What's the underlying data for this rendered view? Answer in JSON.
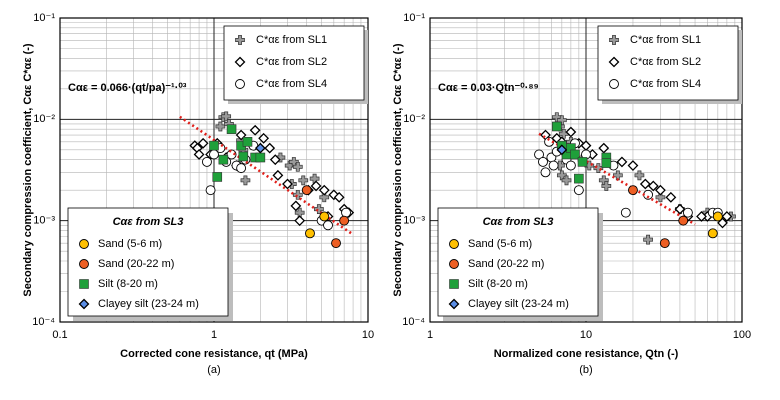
{
  "chart_data": [
    {
      "type": "scatter",
      "log_x": true,
      "log_y": true,
      "grid": true,
      "annotation": "Cαε = 0.066·(qt/pa)⁻¹·⁰³",
      "x_label": "Corrected cone resistance, qt (MPa)",
      "y_label": "Secondary compression coefficient, Cαε C*αε (-)",
      "caption": "(a)",
      "xlim": [
        0.1,
        10
      ],
      "xticks": [
        0.1,
        1,
        10
      ],
      "ylim": [
        0.0001,
        0.1
      ],
      "yticks": [
        {
          "value": 0.0001,
          "label": "10⁻⁴"
        },
        {
          "value": 0.001,
          "label": "10⁻³"
        },
        {
          "value": 0.01,
          "label": "10⁻²"
        },
        {
          "value": 0.1,
          "label": "10⁻¹"
        }
      ],
      "trend": {
        "color": "#e0201b",
        "x": [
          0.6,
          8
        ],
        "values": [
          0.0106,
          0.00073
        ]
      },
      "series": [
        {
          "name": "C*αε from SL1",
          "marker": "plus",
          "color": "#9a9a9a",
          "x": [
            1.15,
            1.2,
            1.1,
            1.25,
            1.5,
            1.55,
            1.6,
            1.45,
            2.7,
            3.1,
            3.3,
            3.5,
            3.2,
            3.8,
            3.5,
            4.5,
            5.2,
            4.8,
            3.6
          ],
          "values": [
            0.0105,
            0.0107,
            0.0085,
            0.009,
            0.0062,
            0.005,
            0.0025,
            0.0035,
            0.0042,
            0.0035,
            0.0038,
            0.0034,
            0.0023,
            0.0025,
            0.0018,
            0.0026,
            0.0017,
            0.0013,
            0.0012
          ]
        },
        {
          "name": "C*αε from SL2",
          "marker": "diamond",
          "color": "#ffffff",
          "x": [
            0.75,
            0.78,
            0.8,
            0.85,
            0.95,
            1.05,
            1.2,
            1.4,
            1.5,
            1.85,
            2.1,
            2.3,
            2.5,
            2.6,
            3.0,
            3.4,
            3.6,
            4.1,
            4.6,
            5.2,
            6.0,
            6.5,
            7.0,
            7.5,
            5.5
          ],
          "values": [
            0.0055,
            0.0052,
            0.0045,
            0.0058,
            0.0045,
            0.0058,
            0.0042,
            0.0035,
            0.007,
            0.0078,
            0.0065,
            0.0052,
            0.004,
            0.0028,
            0.0023,
            0.0014,
            0.001,
            0.002,
            0.0022,
            0.002,
            0.0018,
            0.0017,
            0.0013,
            0.0012,
            0.0011
          ]
        },
        {
          "name": "C*αε from SL4",
          "marker": "circle",
          "color": "#ffffff",
          "x": [
            0.9,
            0.95,
            1.0,
            1.1,
            1.3,
            1.4,
            1.5,
            1.8,
            5.0,
            5.5,
            7.2,
            1.2,
            1.6
          ],
          "values": [
            0.0038,
            0.002,
            0.0045,
            0.0052,
            0.0045,
            0.0035,
            0.0033,
            0.0055,
            0.001,
            0.0009,
            0.0012,
            0.0038,
            0.004
          ]
        }
      ],
      "sl3_legend_title": "Cαε from SL3",
      "sl3_series": [
        {
          "name": "Sand (5-6 m)",
          "marker": "circle",
          "color": "#ffc000",
          "x": [
            4.2,
            5.2
          ],
          "values": [
            0.00075,
            0.0011
          ]
        },
        {
          "name": "Sand (20-22 m)",
          "marker": "circle",
          "color": "#ed5f24",
          "x": [
            4.0,
            6.2,
            7.0
          ],
          "values": [
            0.002,
            0.0006,
            0.001
          ]
        },
        {
          "name": "Silt (8-20 m)",
          "marker": "square",
          "color": "#1fa03a",
          "x": [
            1.0,
            1.05,
            1.15,
            1.3,
            1.5,
            1.55,
            1.85,
            2.0,
            1.65
          ],
          "values": [
            0.0055,
            0.0027,
            0.004,
            0.008,
            0.0055,
            0.0043,
            0.0042,
            0.0042,
            0.006
          ]
        },
        {
          "name": "Clayey silt (23-24 m)",
          "marker": "diamond",
          "color": "#5b8ee6",
          "x": [
            2.0
          ],
          "values": [
            0.0052
          ]
        }
      ]
    },
    {
      "type": "scatter",
      "log_x": true,
      "log_y": true,
      "grid": true,
      "annotation": "Cαε = 0.03·Qtn⁻⁰·⁸⁹",
      "x_label": "Normalized cone resistance, Qtn (-)",
      "y_label": "Secondary compression coefficient, Cαε C*αε (-)",
      "caption": "(b)",
      "xlim": [
        1,
        100
      ],
      "xticks": [
        1,
        10,
        100
      ],
      "ylim": [
        0.0001,
        0.1
      ],
      "yticks": [
        {
          "value": 0.0001,
          "label": "10⁻⁴"
        },
        {
          "value": 0.001,
          "label": "10⁻³"
        },
        {
          "value": 0.01,
          "label": "10⁻²"
        },
        {
          "value": 0.1,
          "label": "10⁻¹"
        }
      ],
      "trend": {
        "color": "#e0201b",
        "x": [
          5,
          50
        ],
        "values": [
          0.0072,
          0.00092
        ]
      },
      "series": [
        {
          "name": "C*αε from SL1",
          "marker": "plus",
          "color": "#9a9a9a",
          "x": [
            6.5,
            7,
            6.8,
            7.2,
            8,
            7.5,
            6.8,
            7,
            7.5,
            9.5,
            10.5,
            12,
            13,
            13.5,
            16,
            22,
            30,
            40,
            85,
            25,
            60
          ],
          "values": [
            0.0105,
            0.0098,
            0.0085,
            0.0072,
            0.006,
            0.0045,
            0.0035,
            0.0028,
            0.0025,
            0.004,
            0.0035,
            0.0033,
            0.0025,
            0.0022,
            0.0028,
            0.0028,
            0.0017,
            0.0013,
            0.0011,
            0.00065,
            0.0012
          ]
        },
        {
          "name": "C*αε from SL2",
          "marker": "diamond",
          "color": "#ffffff",
          "x": [
            5.5,
            6.5,
            7,
            8,
            9,
            10,
            11,
            13,
            17,
            20,
            24,
            27,
            30,
            35,
            40,
            45,
            60,
            75,
            80,
            55
          ],
          "values": [
            0.007,
            0.0065,
            0.006,
            0.0075,
            0.0058,
            0.0055,
            0.0045,
            0.0052,
            0.0038,
            0.0035,
            0.0023,
            0.0022,
            0.002,
            0.0017,
            0.0013,
            0.0011,
            0.0011,
            0.00095,
            0.0011,
            0.0011
          ]
        },
        {
          "name": "C*αε from SL4",
          "marker": "circle",
          "color": "#ffffff",
          "x": [
            5,
            5.3,
            5.5,
            6,
            6.2,
            6.5,
            7,
            7.5,
            8,
            8.5,
            9,
            10,
            15,
            18,
            25,
            45,
            65,
            70,
            5.8
          ],
          "values": [
            0.0045,
            0.0038,
            0.003,
            0.0042,
            0.0035,
            0.0048,
            0.0052,
            0.004,
            0.0035,
            0.0058,
            0.002,
            0.0045,
            0.0035,
            0.0012,
            0.0018,
            0.0012,
            0.0012,
            0.0012,
            0.006
          ]
        }
      ],
      "sl3_legend_title": "Cαε from SL3",
      "sl3_series": [
        {
          "name": "Sand (5-6 m)",
          "marker": "circle",
          "color": "#ffc000",
          "x": [
            65,
            70
          ],
          "values": [
            0.00075,
            0.0011
          ]
        },
        {
          "name": "Sand (20-22 m)",
          "marker": "circle",
          "color": "#ed5f24",
          "x": [
            20,
            32,
            42
          ],
          "values": [
            0.002,
            0.0006,
            0.001
          ]
        },
        {
          "name": "Silt (8-20 m)",
          "marker": "square",
          "color": "#1fa03a",
          "x": [
            6.5,
            7,
            7.5,
            8,
            8.5,
            9,
            9.5,
            13.5,
            13.5
          ],
          "values": [
            0.0085,
            0.0055,
            0.0045,
            0.0052,
            0.0045,
            0.0026,
            0.0038,
            0.0042,
            0.0037
          ]
        },
        {
          "name": "Clayey silt (23-24 m)",
          "marker": "diamond",
          "color": "#5b8ee6",
          "x": [
            7
          ],
          "values": [
            0.005
          ]
        }
      ]
    }
  ]
}
